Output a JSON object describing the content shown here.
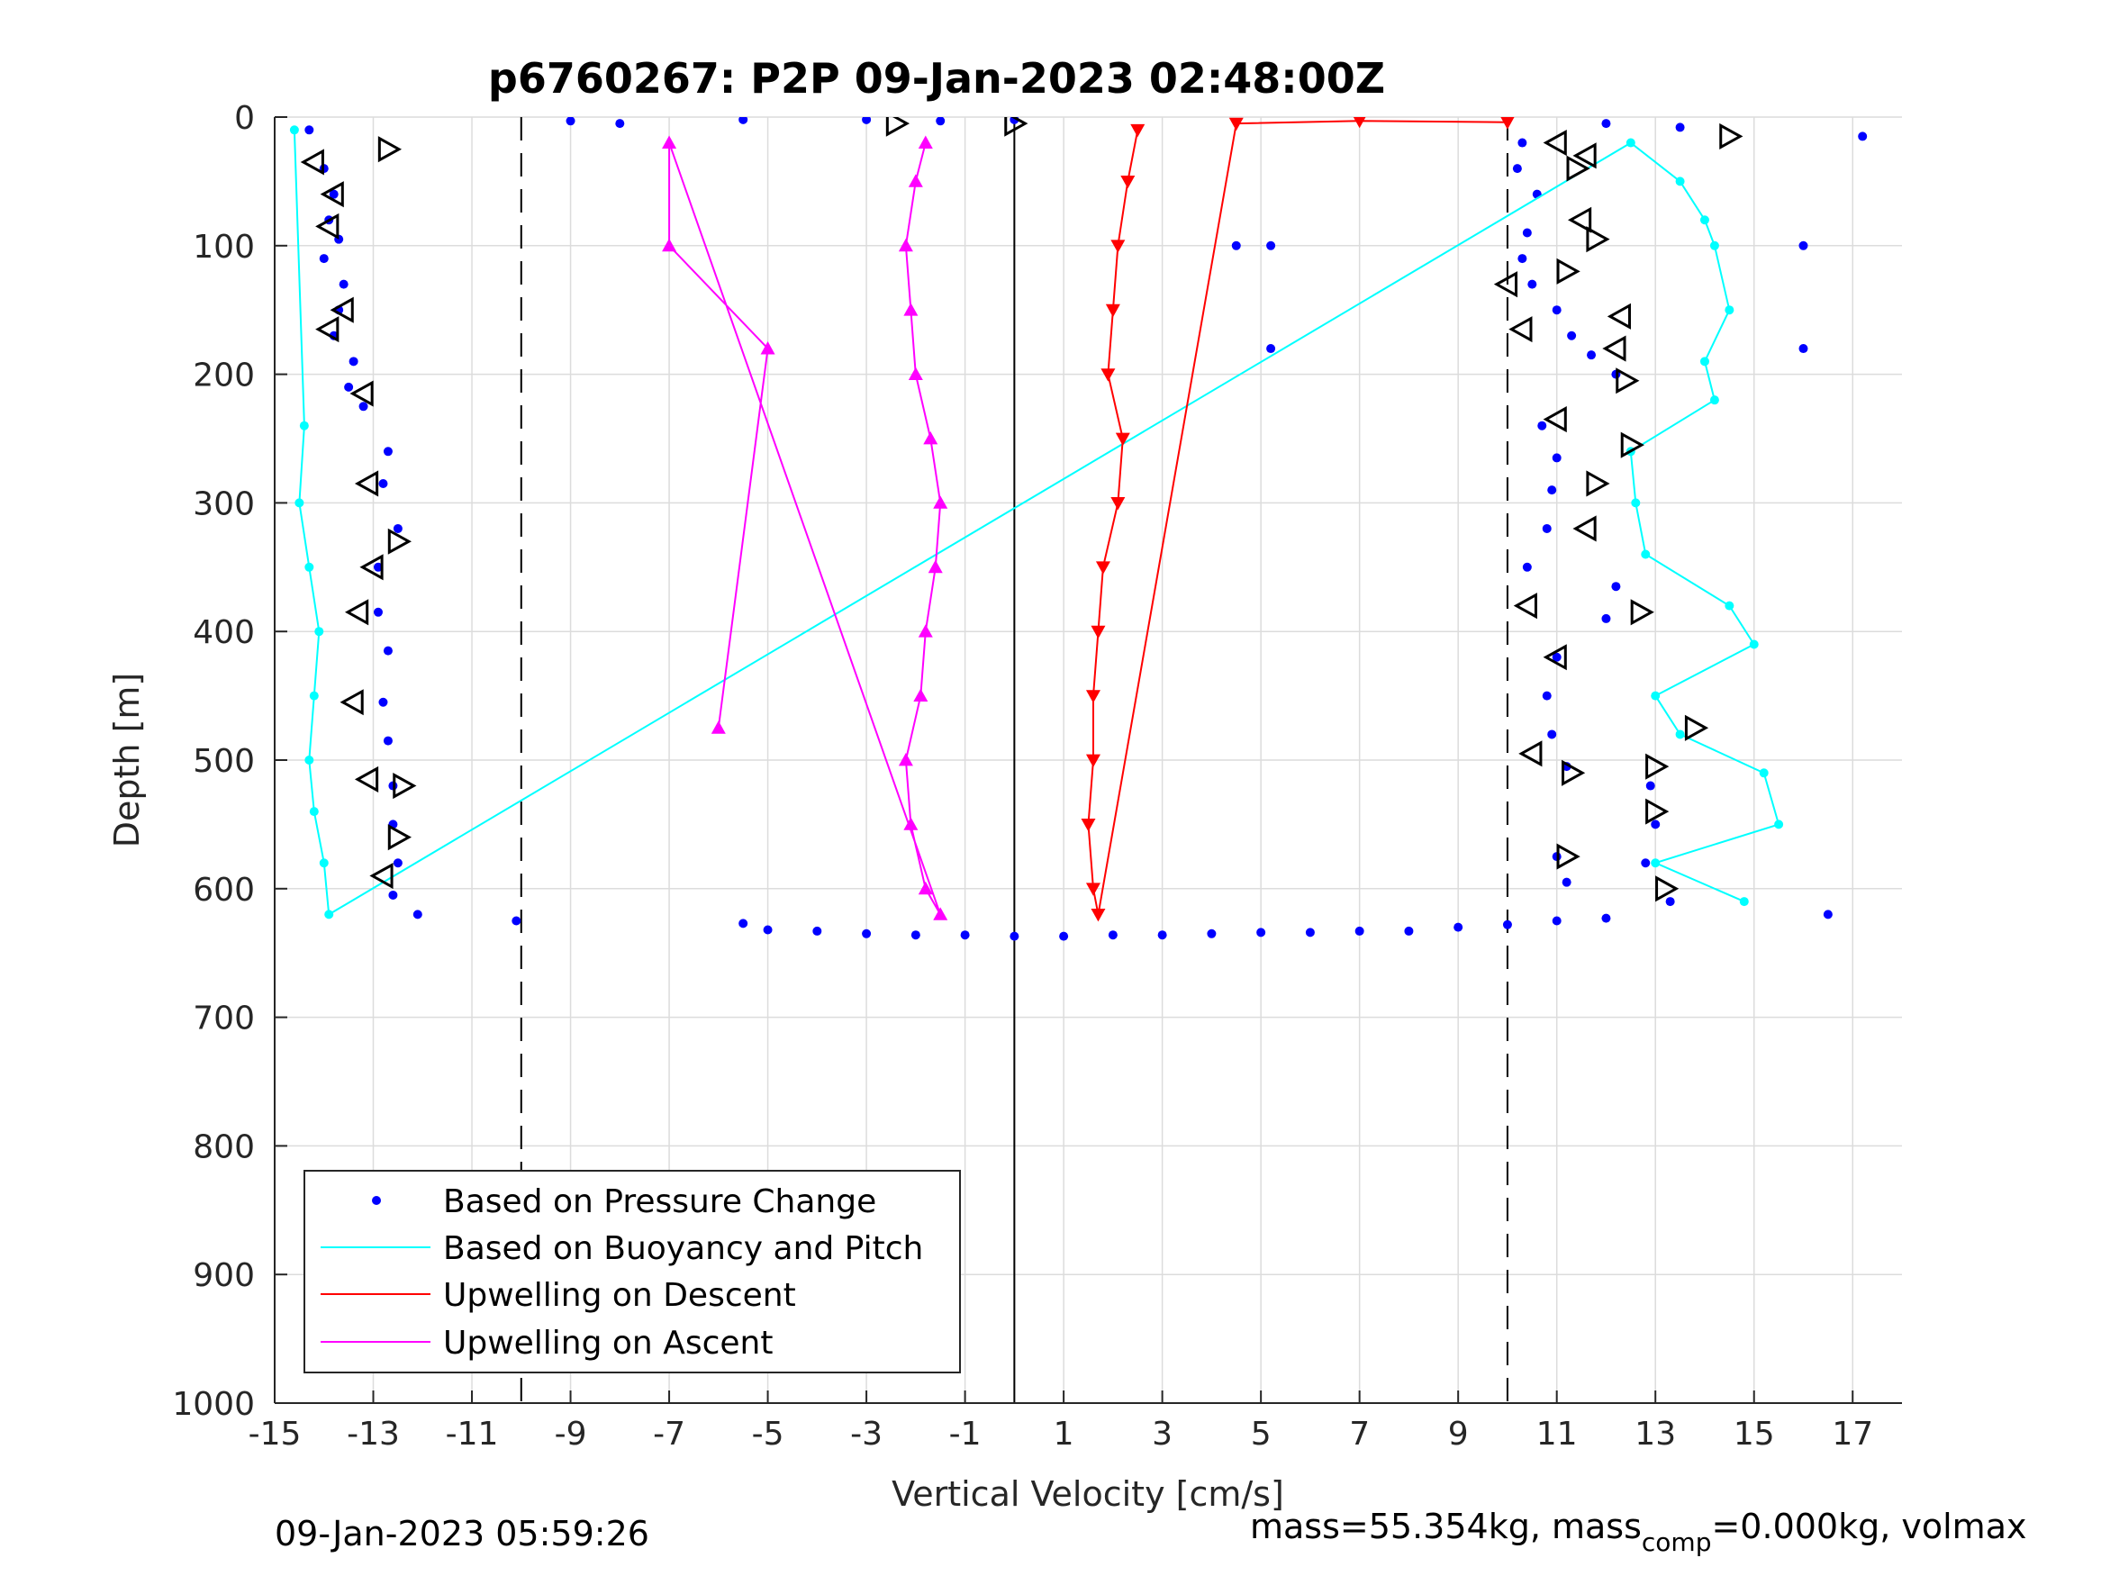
{
  "chart_data": {
    "type": "scatter",
    "title": "p6760267: P2P 09-Jan-2023 02:48:00Z",
    "xlabel": "Vertical Velocity [cm/s]",
    "ylabel": "Depth [m]",
    "xlim": [
      -15,
      18
    ],
    "ylim": [
      1000,
      0
    ],
    "y_reversed": true,
    "grid": true,
    "xticks": [
      -15,
      -13,
      -11,
      -9,
      -7,
      -5,
      -3,
      -1,
      1,
      3,
      5,
      7,
      9,
      11,
      13,
      15,
      17
    ],
    "yticks": [
      0,
      100,
      200,
      300,
      400,
      500,
      600,
      700,
      800,
      900,
      1000
    ],
    "xtick_labels": [
      "-15",
      "-13",
      "-11",
      "-9",
      "-7",
      "-5",
      "-3",
      "-1",
      "1",
      "3",
      "5",
      "7",
      "9",
      "11",
      "13",
      "15",
      "17"
    ],
    "ytick_labels": [
      "0",
      "100",
      "200",
      "300",
      "400",
      "500",
      "600",
      "700",
      "800",
      "900",
      "1000"
    ],
    "reference_lines": [
      {
        "x": -10,
        "style": "dashed"
      },
      {
        "x": 0,
        "style": "solid"
      },
      {
        "x": 10,
        "style": "dashed"
      }
    ],
    "legend_position": "bottom-left",
    "series": [
      {
        "name": "Based on Pressure Change",
        "marker": "dot",
        "color": "#0000FF",
        "points": [
          [
            -14.3,
            10
          ],
          [
            -14.0,
            40
          ],
          [
            -13.8,
            60
          ],
          [
            -13.9,
            80
          ],
          [
            -13.7,
            95
          ],
          [
            -14.0,
            110
          ],
          [
            -13.6,
            130
          ],
          [
            -13.7,
            150
          ],
          [
            -13.8,
            170
          ],
          [
            -13.4,
            190
          ],
          [
            -13.5,
            210
          ],
          [
            -13.2,
            225
          ],
          [
            -12.7,
            260
          ],
          [
            -12.8,
            285
          ],
          [
            -12.5,
            320
          ],
          [
            -12.9,
            350
          ],
          [
            -12.9,
            385
          ],
          [
            -12.7,
            415
          ],
          [
            -12.8,
            455
          ],
          [
            -12.7,
            485
          ],
          [
            -12.6,
            520
          ],
          [
            -12.6,
            550
          ],
          [
            -12.5,
            580
          ],
          [
            -12.6,
            605
          ],
          [
            -12.1,
            620
          ],
          [
            -10.1,
            625
          ],
          [
            -5.5,
            627
          ],
          [
            -5.0,
            632
          ],
          [
            -4.0,
            633
          ],
          [
            -3.0,
            635
          ],
          [
            -2.0,
            636
          ],
          [
            -1.0,
            636
          ],
          [
            0.0,
            637
          ],
          [
            1.0,
            637
          ],
          [
            2.0,
            636
          ],
          [
            3.0,
            636
          ],
          [
            4.0,
            635
          ],
          [
            5.0,
            634
          ],
          [
            6.0,
            634
          ],
          [
            7.0,
            633
          ],
          [
            8.0,
            633
          ],
          [
            9.0,
            630
          ],
          [
            10.0,
            628
          ],
          [
            11.0,
            625
          ],
          [
            12.0,
            623
          ],
          [
            -8.0,
            5
          ],
          [
            -9.0,
            3
          ],
          [
            -5.5,
            2
          ],
          [
            -3.0,
            2
          ],
          [
            -1.5,
            3
          ],
          [
            0.0,
            2
          ],
          [
            4.5,
            100
          ],
          [
            5.2,
            100
          ],
          [
            5.2,
            180
          ],
          [
            10.3,
            20
          ],
          [
            10.2,
            40
          ],
          [
            10.6,
            60
          ],
          [
            10.4,
            90
          ],
          [
            10.3,
            110
          ],
          [
            10.5,
            130
          ],
          [
            11.0,
            150
          ],
          [
            11.3,
            170
          ],
          [
            11.7,
            185
          ],
          [
            12.2,
            200
          ],
          [
            10.7,
            240
          ],
          [
            11.0,
            265
          ],
          [
            10.9,
            290
          ],
          [
            10.8,
            320
          ],
          [
            10.4,
            350
          ],
          [
            12.2,
            365
          ],
          [
            12.0,
            390
          ],
          [
            11.0,
            420
          ],
          [
            10.8,
            450
          ],
          [
            10.9,
            480
          ],
          [
            11.2,
            505
          ],
          [
            12.9,
            520
          ],
          [
            13.0,
            550
          ],
          [
            12.8,
            580
          ],
          [
            13.3,
            610
          ],
          [
            12.0,
            5
          ],
          [
            13.5,
            8
          ],
          [
            16.0,
            100
          ],
          [
            16.5,
            620
          ],
          [
            16.0,
            180
          ],
          [
            17.2,
            15
          ],
          [
            11.0,
            575
          ],
          [
            11.2,
            595
          ]
        ]
      },
      {
        "name": "Based on Buoyancy and Pitch",
        "marker": "line",
        "color": "#00FFFF",
        "points": [
          [
            -14.6,
            10
          ],
          [
            -14.4,
            240
          ],
          [
            -14.5,
            300
          ],
          [
            -14.3,
            350
          ],
          [
            -14.1,
            400
          ],
          [
            -14.2,
            450
          ],
          [
            -14.3,
            500
          ],
          [
            -14.2,
            540
          ],
          [
            -14.0,
            580
          ],
          [
            -13.9,
            620
          ],
          [
            12.5,
            20
          ],
          [
            13.5,
            50
          ],
          [
            14.0,
            80
          ],
          [
            14.2,
            100
          ],
          [
            14.5,
            150
          ],
          [
            14.0,
            190
          ],
          [
            14.2,
            220
          ],
          [
            12.5,
            260
          ],
          [
            12.6,
            300
          ],
          [
            12.8,
            340
          ],
          [
            14.5,
            380
          ],
          [
            15.0,
            410
          ],
          [
            13.0,
            450
          ],
          [
            13.5,
            480
          ],
          [
            15.2,
            510
          ],
          [
            15.5,
            550
          ],
          [
            13.0,
            580
          ],
          [
            14.8,
            610
          ]
        ]
      },
      {
        "name": "Upwelling on Descent",
        "marker": "triangle-down",
        "color": "#FF0000",
        "points": [
          [
            2.5,
            10
          ],
          [
            2.3,
            50
          ],
          [
            2.1,
            100
          ],
          [
            2.0,
            150
          ],
          [
            1.9,
            200
          ],
          [
            2.2,
            250
          ],
          [
            2.1,
            300
          ],
          [
            1.8,
            350
          ],
          [
            1.7,
            400
          ],
          [
            1.6,
            450
          ],
          [
            1.6,
            500
          ],
          [
            1.5,
            550
          ],
          [
            1.6,
            600
          ],
          [
            1.7,
            620
          ],
          [
            4.5,
            5
          ],
          [
            7.0,
            3
          ],
          [
            10.0,
            4
          ]
        ]
      },
      {
        "name": "Upwelling on Ascent",
        "marker": "triangle-up",
        "color": "#FF00FF",
        "points": [
          [
            -1.8,
            20
          ],
          [
            -2.0,
            50
          ],
          [
            -2.2,
            100
          ],
          [
            -2.1,
            150
          ],
          [
            -2.0,
            200
          ],
          [
            -1.7,
            250
          ],
          [
            -1.5,
            300
          ],
          [
            -1.6,
            350
          ],
          [
            -1.8,
            400
          ],
          [
            -1.9,
            450
          ],
          [
            -2.2,
            500
          ],
          [
            -2.1,
            550
          ],
          [
            -1.8,
            600
          ],
          [
            -1.5,
            620
          ],
          [
            -7.0,
            20
          ],
          [
            -7.0,
            100
          ],
          [
            -5.0,
            180
          ],
          [
            -6.0,
            475
          ]
        ]
      }
    ],
    "annotation_markers": [
      {
        "shape": "triangle-left",
        "points": [
          [
            -14.2,
            35
          ],
          [
            -13.8,
            60
          ],
          [
            -13.9,
            85
          ],
          [
            -13.6,
            150
          ],
          [
            -13.9,
            165
          ],
          [
            -13.2,
            215
          ],
          [
            -13.1,
            285
          ],
          [
            -13.0,
            350
          ],
          [
            -13.3,
            385
          ],
          [
            -13.4,
            455
          ],
          [
            -13.1,
            515
          ],
          [
            -12.8,
            590
          ],
          [
            10.0,
            130
          ],
          [
            11.0,
            20
          ],
          [
            11.6,
            30
          ],
          [
            11.5,
            80
          ],
          [
            10.3,
            165
          ],
          [
            11.0,
            235
          ],
          [
            11.6,
            320
          ],
          [
            10.4,
            380
          ],
          [
            11.0,
            420
          ],
          [
            10.5,
            495
          ],
          [
            12.3,
            155
          ],
          [
            12.2,
            180
          ]
        ]
      },
      {
        "shape": "triangle-right",
        "points": [
          [
            -12.7,
            25
          ],
          [
            -12.5,
            330
          ],
          [
            -12.4,
            520
          ],
          [
            -12.5,
            560
          ],
          [
            0.0,
            5
          ],
          [
            -2.4,
            5
          ],
          [
            14.5,
            15
          ],
          [
            11.4,
            40
          ],
          [
            11.8,
            95
          ],
          [
            11.2,
            120
          ],
          [
            12.4,
            205
          ],
          [
            12.5,
            255
          ],
          [
            11.8,
            285
          ],
          [
            12.7,
            385
          ],
          [
            11.3,
            510
          ],
          [
            13.8,
            475
          ],
          [
            13.0,
            505
          ],
          [
            13.0,
            540
          ],
          [
            11.2,
            575
          ],
          [
            13.2,
            600
          ]
        ]
      }
    ],
    "footer_left": "09-Jan-2023 05:59:26",
    "footer_right": {
      "part1": "mass=55.354kg, mass",
      "subscript": "comp",
      "part2": "=0.000kg, volmax"
    }
  }
}
